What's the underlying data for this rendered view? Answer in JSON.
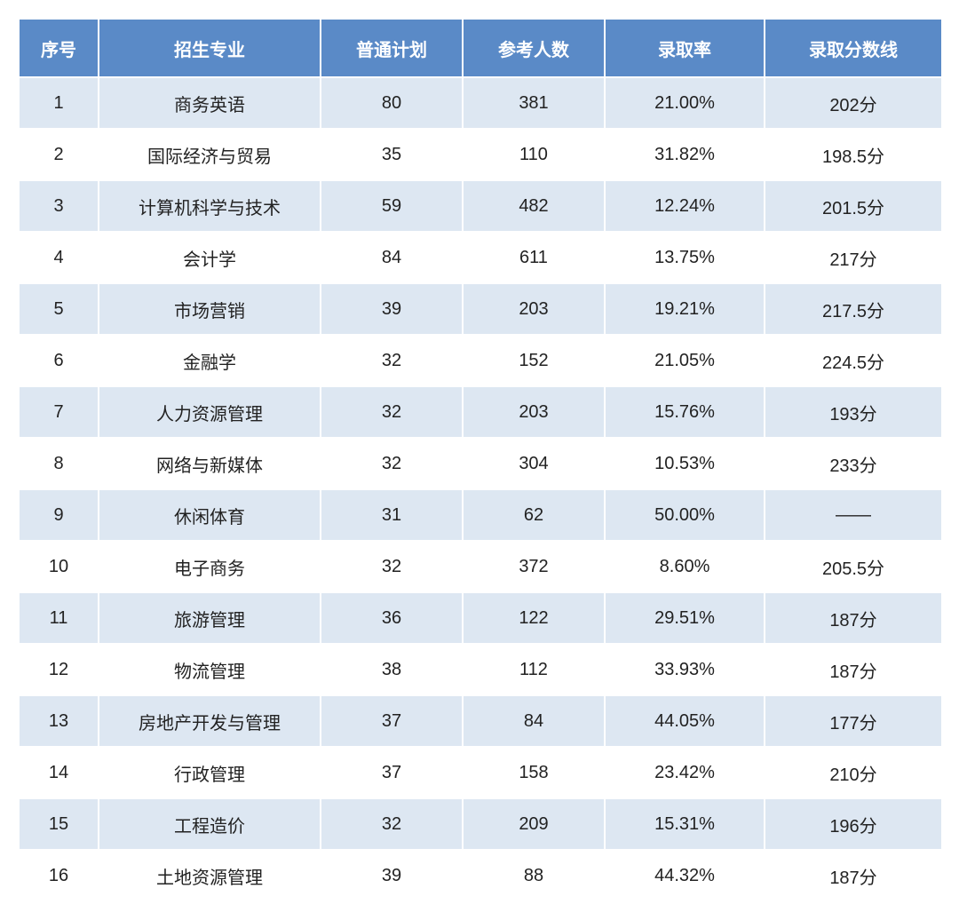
{
  "table": {
    "columns": [
      "序号",
      "招生专业",
      "普通计划",
      "参考人数",
      "录取率",
      "录取分数线"
    ],
    "rows": [
      [
        "1",
        "商务英语",
        "80",
        "381",
        "21.00%",
        "202分"
      ],
      [
        "2",
        "国际经济与贸易",
        "35",
        "110",
        "31.82%",
        "198.5分"
      ],
      [
        "3",
        "计算机科学与技术",
        "59",
        "482",
        "12.24%",
        "201.5分"
      ],
      [
        "4",
        "会计学",
        "84",
        "611",
        "13.75%",
        "217分"
      ],
      [
        "5",
        "市场营销",
        "39",
        "203",
        "19.21%",
        "217.5分"
      ],
      [
        "6",
        "金融学",
        "32",
        "152",
        "21.05%",
        "224.5分"
      ],
      [
        "7",
        "人力资源管理",
        "32",
        "203",
        "15.76%",
        "193分"
      ],
      [
        "8",
        "网络与新媒体",
        "32",
        "304",
        "10.53%",
        "233分"
      ],
      [
        "9",
        "休闲体育",
        "31",
        "62",
        "50.00%",
        "——"
      ],
      [
        "10",
        "电子商务",
        "32",
        "372",
        "8.60%",
        "205.5分"
      ],
      [
        "11",
        "旅游管理",
        "36",
        "122",
        "29.51%",
        "187分"
      ],
      [
        "12",
        "物流管理",
        "38",
        "112",
        "33.93%",
        "187分"
      ],
      [
        "13",
        "房地产开发与管理",
        "37",
        "84",
        "44.05%",
        "177分"
      ],
      [
        "14",
        "行政管理",
        "37",
        "158",
        "23.42%",
        "210分"
      ],
      [
        "15",
        "工程造价",
        "32",
        "209",
        "15.31%",
        "196分"
      ],
      [
        "16",
        "土地资源管理",
        "39",
        "88",
        "44.32%",
        "187分"
      ]
    ],
    "header_bg": "#5a8ac7",
    "header_fg": "#ffffff",
    "row_odd_bg": "#dde7f2",
    "row_even_bg": "#ffffff",
    "border_color": "#ffffff",
    "text_color": "#222222",
    "header_fontsize": 20,
    "cell_fontsize": 20
  }
}
